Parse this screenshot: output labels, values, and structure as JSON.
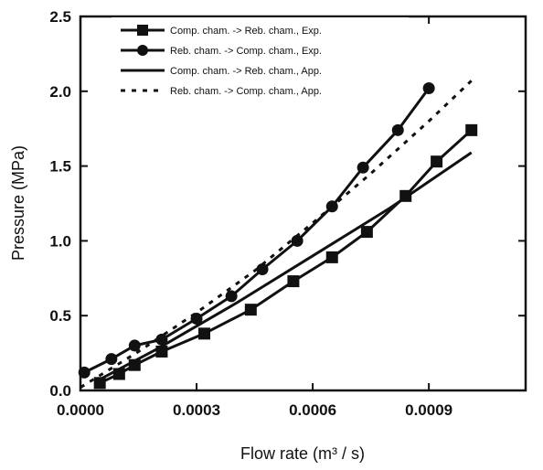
{
  "chart_data": {
    "type": "line",
    "title": "",
    "xlabel": "Flow rate  (m³ / s)",
    "ylabel": "Pressure  (MPa)",
    "xlim": [
      0.0,
      0.00115
    ],
    "ylim": [
      0.0,
      2.5
    ],
    "x_ticks": [
      0.0,
      0.0003,
      0.0006,
      0.0009
    ],
    "x_tick_labels": [
      "0.0000",
      "0.0003",
      "0.0006",
      "0.0009"
    ],
    "y_ticks": [
      0.0,
      0.5,
      1.0,
      1.5,
      2.0,
      2.5
    ],
    "y_tick_labels": [
      "0.0",
      "0.5",
      "1.0",
      "1.5",
      "2.0",
      "2.5"
    ],
    "grid": false,
    "legend_position": "top-left",
    "series": [
      {
        "name": "Comp. cham. -> Reb. cham., Exp.",
        "style": "solid",
        "marker": "square",
        "x": [
          5e-05,
          0.0001,
          0.00014,
          0.00021,
          0.00032,
          0.00044,
          0.00055,
          0.00065,
          0.00074,
          0.00084,
          0.00092,
          0.00101
        ],
        "y": [
          0.05,
          0.11,
          0.17,
          0.26,
          0.38,
          0.54,
          0.73,
          0.89,
          1.06,
          1.3,
          1.53,
          1.74
        ]
      },
      {
        "name": "Reb. cham. -> Comp. cham., Exp.",
        "style": "solid",
        "marker": "circle",
        "x": [
          1e-05,
          8e-05,
          0.00014,
          0.00021,
          0.0003,
          0.00039,
          0.00047,
          0.00056,
          0.00065,
          0.00073,
          0.00082,
          0.0009
        ],
        "y": [
          0.12,
          0.21,
          0.3,
          0.34,
          0.48,
          0.63,
          0.81,
          1.0,
          1.23,
          1.49,
          1.74,
          2.02
        ]
      },
      {
        "name": "Comp. cham. -> Reb. cham., App.",
        "style": "solid",
        "marker": "none",
        "x": [
          4e-05,
          0.0002,
          0.0004,
          0.0006,
          0.0008,
          0.00101
        ],
        "y": [
          0.06,
          0.28,
          0.58,
          0.9,
          1.22,
          1.59
        ]
      },
      {
        "name": "Reb. cham. -> Comp. cham., App.",
        "style": "dotted",
        "marker": "none",
        "x": [
          0.0,
          0.00015,
          0.0003,
          0.00045,
          0.0006,
          0.00075,
          0.0009,
          0.00101
        ],
        "y": [
          0.02,
          0.26,
          0.52,
          0.8,
          1.12,
          1.45,
          1.8,
          2.07
        ]
      }
    ]
  }
}
